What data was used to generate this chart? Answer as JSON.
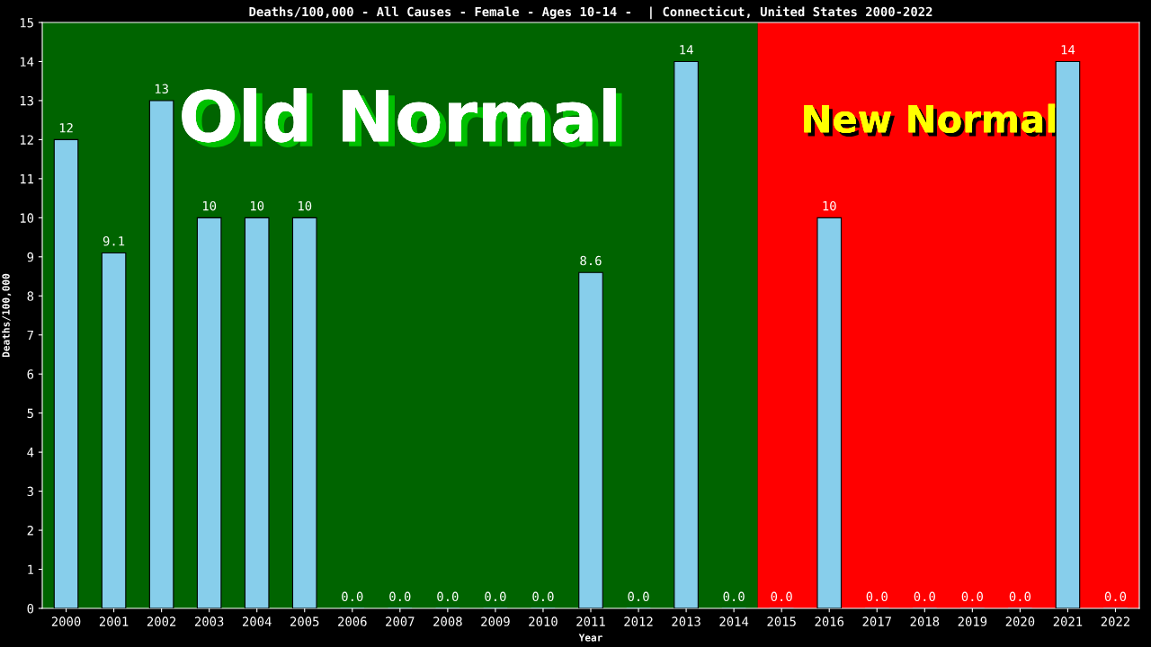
{
  "chart_data": {
    "type": "bar",
    "title": "Deaths/100,000 - All Causes - Female - Ages 10-14 -  | Connecticut, United States 2000-2022",
    "xlabel": "Year",
    "ylabel": "Deaths/100,000",
    "categories": [
      "2000",
      "2001",
      "2002",
      "2003",
      "2004",
      "2005",
      "2006",
      "2007",
      "2008",
      "2009",
      "2010",
      "2011",
      "2012",
      "2013",
      "2014",
      "2015",
      "2016",
      "2017",
      "2018",
      "2019",
      "2020",
      "2021",
      "2022"
    ],
    "values": [
      12,
      9.1,
      13,
      10,
      10,
      10,
      0,
      0,
      0,
      0,
      0,
      8.6,
      0,
      14,
      0,
      0,
      10,
      0,
      0,
      0,
      0,
      14,
      0
    ],
    "value_labels": [
      "12",
      "9.1",
      "13",
      "10",
      "10",
      "10",
      "0.0",
      "0.0",
      "0.0",
      "0.0",
      "0.0",
      "8.6",
      "0.0",
      "14",
      "0.0",
      "0.0",
      "10",
      "0.0",
      "0.0",
      "0.0",
      "0.0",
      "14",
      "0.0"
    ],
    "color": "#87ceeb",
    "ylim": [
      0,
      15
    ],
    "yticks": [
      0,
      1,
      2,
      3,
      4,
      5,
      6,
      7,
      8,
      9,
      10,
      11,
      12,
      13,
      14,
      15
    ],
    "bands": [
      {
        "axis": "x",
        "from": "2000",
        "to": "2014",
        "label": "Old Normal",
        "color": "#006400"
      },
      {
        "axis": "x",
        "from": "2015",
        "to": "2022",
        "label": "New Normal",
        "color": "#ff0000"
      }
    ],
    "grid": false,
    "legend": false
  }
}
